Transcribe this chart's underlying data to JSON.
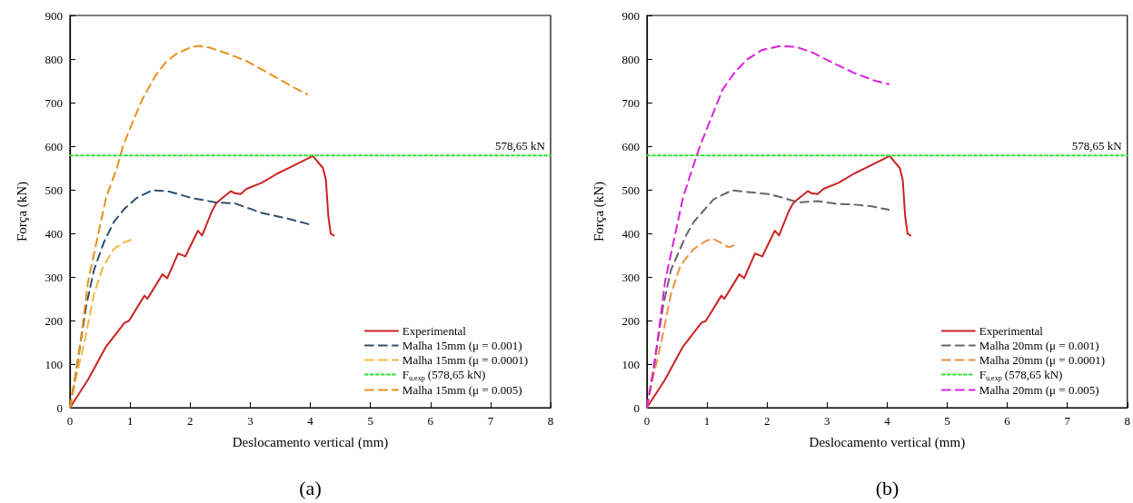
{
  "chart_data": [
    {
      "type": "line",
      "xlabel": "Deslocamento vertical (mm)",
      "ylabel": "Força (kN)",
      "xlim": [
        0,
        8
      ],
      "xticks": [
        0,
        1,
        2,
        3,
        4,
        5,
        6,
        7,
        8
      ],
      "ylim": [
        0,
        900
      ],
      "yticks": [
        0,
        100,
        200,
        300,
        400,
        500,
        600,
        700,
        800,
        900
      ],
      "grid": false,
      "legend": "bottom right",
      "marker": "none",
      "annotations": [
        {
          "text": "578,65 kN",
          "x": 8,
          "y": 578.65
        },
        "(a)"
      ],
      "series": [
        {
          "name": "Experimental",
          "color": "#cc2222",
          "line_style": "solid",
          "x": [
            0,
            0.3,
            0.6,
            0.91,
            0.98,
            1.24,
            1.29,
            1.54,
            1.62,
            1.8,
            1.92,
            2.13,
            2.2,
            2.36,
            2.43,
            2.51,
            2.68,
            2.74,
            2.84,
            2.94,
            3.19,
            3.45,
            3.7,
            3.95,
            4.04,
            4.21,
            4.26,
            4.3,
            4.34,
            4.39
          ],
          "values": [
            0,
            64,
            140,
            195,
            199,
            257,
            250,
            306,
            297,
            354,
            347,
            406,
            395,
            450,
            468,
            478,
            497,
            492,
            490,
            502,
            516,
            537,
            554,
            571,
            578,
            550,
            523,
            440,
            399,
            395
          ]
        },
        {
          "name": "Malha 15mm (μ = 0.001)",
          "color": "#2f4f6f",
          "line_style": "dashed",
          "x": [
            0,
            0.1,
            0.27,
            0.4,
            0.56,
            0.73,
            0.91,
            1.11,
            1.37,
            1.62,
            2.03,
            2.43,
            2.74,
            3.19,
            3.65,
            4.03
          ],
          "values": [
            0,
            81,
            233,
            316,
            378,
            426,
            457,
            481,
            499,
            497,
            481,
            471,
            469,
            447,
            433,
            419
          ]
        },
        {
          "name": "Malha 15mm (μ = 0.0001)",
          "color": "#f0b840",
          "line_style": "dashed",
          "x": [
            0,
            0.1,
            0.25,
            0.4,
            0.55,
            0.73,
            0.88,
            1.01
          ],
          "values": [
            0,
            68,
            157,
            261,
            323,
            364,
            378,
            385
          ]
        },
        {
          "name": "F$_{u,exp}$ (578,65 kN)",
          "color": "#33dd33",
          "line_style": "dotted",
          "x": [
            0,
            8
          ],
          "values": [
            578.65,
            578.65
          ]
        },
        {
          "name": "Malha 15mm (μ = 0.005)",
          "color": "#e8901c",
          "line_style": "dashed",
          "x": [
            0,
            0.05,
            0.12,
            0.22,
            0.3,
            0.45,
            0.6,
            0.78,
            0.88,
            1.06,
            1.21,
            1.42,
            1.59,
            1.77,
            2.03,
            2.15,
            2.33,
            2.63,
            2.94,
            3.35,
            3.75,
            3.95
          ],
          "values": [
            0,
            40,
            95,
            199,
            288,
            385,
            481,
            550,
            599,
            661,
            709,
            761,
            792,
            812,
            828,
            830,
            826,
            812,
            795,
            764,
            733,
            719
          ]
        }
      ]
    },
    {
      "type": "line",
      "xlabel": "Deslocamento vertical (mm)",
      "ylabel": "Força (kN)",
      "xlim": [
        0,
        8
      ],
      "xticks": [
        0,
        1,
        2,
        3,
        4,
        5,
        6,
        7,
        8
      ],
      "ylim": [
        0,
        900
      ],
      "yticks": [
        0,
        100,
        200,
        300,
        400,
        500,
        600,
        700,
        800,
        900
      ],
      "grid": false,
      "legend": "bottom right",
      "marker": "none",
      "annotations": [
        {
          "text": "578,65 kN",
          "x": 8,
          "y": 578.65
        },
        "(b)"
      ],
      "series": [
        {
          "name": "Experimental",
          "color": "#cc2222",
          "line_style": "solid",
          "x": [
            0,
            0.3,
            0.6,
            0.91,
            0.98,
            1.24,
            1.29,
            1.54,
            1.62,
            1.8,
            1.92,
            2.13,
            2.2,
            2.36,
            2.43,
            2.51,
            2.68,
            2.74,
            2.84,
            2.94,
            3.19,
            3.45,
            3.7,
            3.95,
            4.04,
            4.21,
            4.26,
            4.3,
            4.34,
            4.39
          ],
          "values": [
            0,
            64,
            140,
            195,
            199,
            257,
            250,
            306,
            297,
            354,
            347,
            406,
            395,
            450,
            468,
            478,
            497,
            492,
            490,
            502,
            516,
            537,
            554,
            571,
            578,
            550,
            523,
            440,
            399,
            395
          ]
        },
        {
          "name": "Malha 20mm (μ = 0.001)",
          "color": "#666666",
          "line_style": "dashed",
          "x": [
            0,
            0.1,
            0.27,
            0.4,
            0.65,
            0.78,
            0.93,
            1.11,
            1.42,
            1.67,
            2.03,
            2.28,
            2.53,
            2.84,
            3.14,
            3.45,
            3.75,
            4.03
          ],
          "values": [
            0,
            81,
            233,
            316,
            395,
            426,
            450,
            478,
            499,
            495,
            490,
            481,
            471,
            474,
            468,
            466,
            462,
            454
          ]
        },
        {
          "name": "Malha 20mm (μ = 0.0001)",
          "color": "#ee9040",
          "line_style": "dashed",
          "x": [
            0,
            0.1,
            0.25,
            0.4,
            0.55,
            0.65,
            0.78,
            0.96,
            1.09,
            1.24,
            1.36,
            1.49
          ],
          "values": [
            0,
            68,
            157,
            261,
            323,
            343,
            364,
            381,
            388,
            378,
            368,
            374
          ]
        },
        {
          "name": "F$_{u,exp}$ (578,65 kN)",
          "color": "#33dd33",
          "line_style": "dotted",
          "x": [
            0,
            8
          ],
          "values": [
            578.65,
            578.65
          ]
        },
        {
          "name": "Malha 20mm (μ = 0.005)",
          "color": "#dd22dd",
          "line_style": "dashed",
          "x": [
            0,
            0.05,
            0.12,
            0.22,
            0.3,
            0.45,
            0.6,
            0.76,
            0.88,
            1.06,
            1.26,
            1.47,
            1.67,
            1.92,
            2.23,
            2.48,
            2.74,
            3.04,
            3.45,
            3.8,
            4.03
          ],
          "values": [
            0,
            40,
            95,
            199,
            288,
            385,
            481,
            550,
            599,
            661,
            730,
            771,
            799,
            821,
            830,
            828,
            816,
            795,
            768,
            750,
            742
          ]
        }
      ]
    }
  ]
}
